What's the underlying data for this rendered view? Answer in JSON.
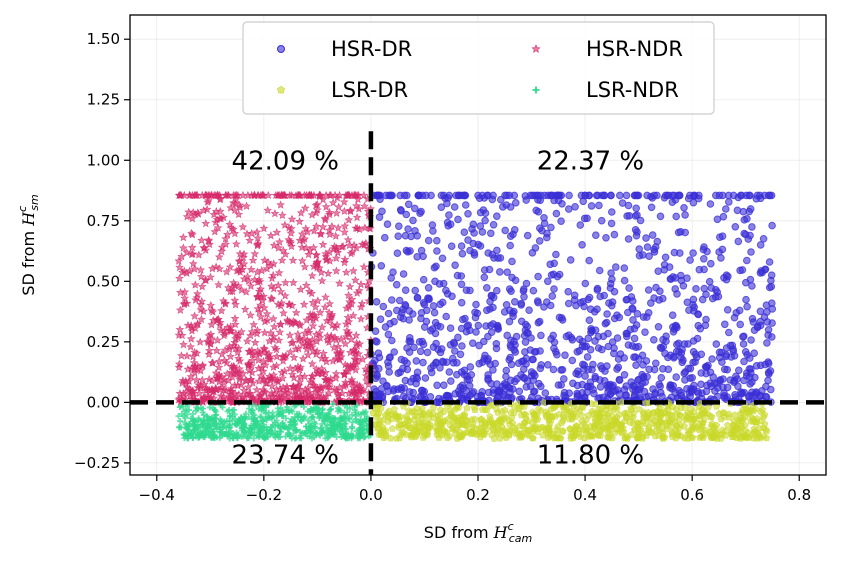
{
  "chart_data": {
    "type": "scatter",
    "xlabel": {
      "prefix": "SD from ",
      "script": "H",
      "sup": "c",
      "sub": "cam"
    },
    "ylabel": {
      "prefix": "SD from ",
      "script": "H",
      "sup": "c",
      "sub": "sm"
    },
    "xlim": [
      -0.45,
      0.85
    ],
    "ylim": [
      -0.3,
      1.6
    ],
    "x_ticks": [
      {
        "value": -0.4,
        "label": "−0.4"
      },
      {
        "value": -0.2,
        "label": "−0.2"
      },
      {
        "value": 0.0,
        "label": "0.0"
      },
      {
        "value": 0.2,
        "label": "0.2"
      },
      {
        "value": 0.4,
        "label": "0.4"
      },
      {
        "value": 0.6,
        "label": "0.6"
      },
      {
        "value": 0.8,
        "label": "0.8"
      }
    ],
    "y_ticks": [
      {
        "value": -0.25,
        "label": "−0.25"
      },
      {
        "value": 0.0,
        "label": "0.00"
      },
      {
        "value": 0.25,
        "label": "0.25"
      },
      {
        "value": 0.5,
        "label": "0.50"
      },
      {
        "value": 0.75,
        "label": "0.75"
      },
      {
        "value": 1.0,
        "label": "1.00"
      },
      {
        "value": 1.25,
        "label": "1.25"
      },
      {
        "value": 1.5,
        "label": "1.50"
      }
    ],
    "grid": true,
    "reference_lines": {
      "x": 0.0,
      "y": 0.0,
      "style": "dashed"
    },
    "legend": {
      "placement": "top-center",
      "columns": 2
    },
    "series": [
      {
        "name": "HSR-DR",
        "color": "#3a2fd6",
        "marker": "circle",
        "x_range": [
          0.0,
          0.75
        ],
        "y_range": [
          0.0,
          0.855
        ],
        "cap_value": 0.855
      },
      {
        "name": "HSR-NDR",
        "color": "#d62a6a",
        "marker": "star",
        "x_range": [
          -0.36,
          0.0
        ],
        "y_range": [
          0.0,
          0.855
        ],
        "cap_value": 0.855
      },
      {
        "name": "LSR-DR",
        "color": "#c9d82a",
        "marker": "pentagon",
        "x_range": [
          0.0,
          0.74
        ],
        "y_range": [
          -0.15,
          0.0
        ]
      },
      {
        "name": "LSR-NDR",
        "color": "#2fd98f",
        "marker": "plus",
        "x_range": [
          -0.36,
          0.0
        ],
        "y_range": [
          -0.15,
          0.0
        ]
      }
    ],
    "annotations": [
      {
        "text": "42.09 %",
        "x": -0.16,
        "y": 1.0
      },
      {
        "text": "22.37 %",
        "x": 0.41,
        "y": 1.0
      },
      {
        "text": "23.74 %",
        "x": -0.16,
        "y": -0.215
      },
      {
        "text": "11.80 %",
        "x": 0.41,
        "y": -0.215
      }
    ]
  }
}
